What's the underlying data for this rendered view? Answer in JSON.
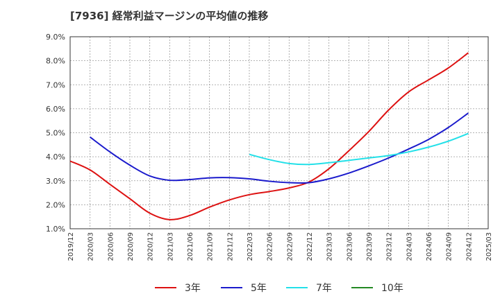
{
  "chart_data": {
    "type": "line",
    "title": "[7936]  経常利益マージンの平均値の推移",
    "xlabel": "",
    "ylabel": "",
    "x_ticks": [
      "2019/12",
      "2020/03",
      "2020/06",
      "2020/09",
      "2020/12",
      "2021/03",
      "2021/06",
      "2021/09",
      "2021/12",
      "2022/03",
      "2022/06",
      "2022/09",
      "2022/12",
      "2023/03",
      "2023/06",
      "2023/09",
      "2023/12",
      "2024/03",
      "2024/06",
      "2024/09",
      "2024/12",
      "2025/03"
    ],
    "y_ticks": [
      "1.0%",
      "2.0%",
      "3.0%",
      "4.0%",
      "5.0%",
      "6.0%",
      "7.0%",
      "8.0%",
      "9.0%"
    ],
    "ylim": [
      1.0,
      9.0
    ],
    "grid": true,
    "legend_position": "bottom",
    "series": [
      {
        "name": "3年",
        "color": "#dd1111",
        "points": [
          [
            "2019/12",
            3.82
          ],
          [
            "2020/03",
            3.45
          ],
          [
            "2020/06",
            2.85
          ],
          [
            "2020/09",
            2.25
          ],
          [
            "2020/12",
            1.65
          ],
          [
            "2021/03",
            1.38
          ],
          [
            "2021/06",
            1.55
          ],
          [
            "2021/09",
            1.9
          ],
          [
            "2021/12",
            2.2
          ],
          [
            "2022/03",
            2.42
          ],
          [
            "2022/06",
            2.55
          ],
          [
            "2022/09",
            2.7
          ],
          [
            "2022/12",
            2.95
          ],
          [
            "2023/03",
            3.5
          ],
          [
            "2023/06",
            4.25
          ],
          [
            "2023/09",
            5.05
          ],
          [
            "2023/12",
            5.95
          ],
          [
            "2024/03",
            6.7
          ],
          [
            "2024/06",
            7.2
          ],
          [
            "2024/09",
            7.7
          ],
          [
            "2024/12",
            8.33
          ]
        ]
      },
      {
        "name": "5年",
        "color": "#1a1acc",
        "points": [
          [
            "2020/03",
            4.82
          ],
          [
            "2020/06",
            4.2
          ],
          [
            "2020/09",
            3.65
          ],
          [
            "2020/12",
            3.2
          ],
          [
            "2021/03",
            3.02
          ],
          [
            "2021/06",
            3.05
          ],
          [
            "2021/09",
            3.12
          ],
          [
            "2021/12",
            3.13
          ],
          [
            "2022/03",
            3.08
          ],
          [
            "2022/06",
            2.98
          ],
          [
            "2022/09",
            2.92
          ],
          [
            "2022/12",
            2.92
          ],
          [
            "2023/03",
            3.08
          ],
          [
            "2023/06",
            3.32
          ],
          [
            "2023/09",
            3.62
          ],
          [
            "2023/12",
            3.95
          ],
          [
            "2024/03",
            4.32
          ],
          [
            "2024/06",
            4.72
          ],
          [
            "2024/09",
            5.22
          ],
          [
            "2024/12",
            5.82
          ]
        ]
      },
      {
        "name": "7年",
        "color": "#22e0e8",
        "points": [
          [
            "2022/03",
            4.1
          ],
          [
            "2022/06",
            3.88
          ],
          [
            "2022/09",
            3.72
          ],
          [
            "2022/12",
            3.68
          ],
          [
            "2023/03",
            3.75
          ],
          [
            "2023/06",
            3.85
          ],
          [
            "2023/09",
            3.95
          ],
          [
            "2023/12",
            4.05
          ],
          [
            "2024/03",
            4.2
          ],
          [
            "2024/06",
            4.4
          ],
          [
            "2024/09",
            4.65
          ],
          [
            "2024/12",
            4.97
          ]
        ]
      },
      {
        "name": "10年",
        "color": "#228822",
        "points": []
      }
    ]
  }
}
